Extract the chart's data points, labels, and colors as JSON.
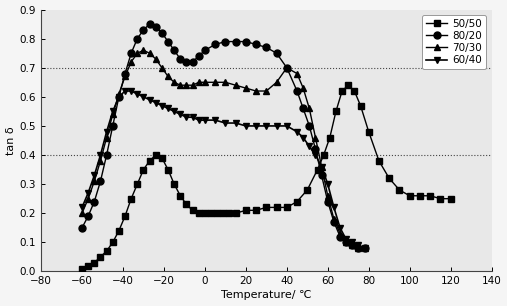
{
  "title": "",
  "xlabel": "Temperature/ ℃",
  "ylabel": "tan δ",
  "xlim": [
    -80,
    140
  ],
  "ylim": [
    0.0,
    0.9
  ],
  "xticks": [
    -80,
    -60,
    -40,
    -20,
    0,
    20,
    40,
    60,
    80,
    100,
    120,
    140
  ],
  "yticks": [
    0.0,
    0.1,
    0.2,
    0.3,
    0.4,
    0.5,
    0.6,
    0.7,
    0.8,
    0.9
  ],
  "hlines": [
    0.7,
    0.4
  ],
  "series": [
    {
      "label": "50/50",
      "marker": "s",
      "markersize": 4,
      "linewidth": 1.0,
      "x": [
        -60,
        -57,
        -54,
        -51,
        -48,
        -45,
        -42,
        -39,
        -36,
        -33,
        -30,
        -27,
        -24,
        -21,
        -18,
        -15,
        -12,
        -9,
        -6,
        -3,
        0,
        3,
        6,
        9,
        12,
        15,
        20,
        25,
        30,
        35,
        40,
        45,
        50,
        55,
        58,
        61,
        64,
        67,
        70,
        73,
        76,
        80,
        85,
        90,
        95,
        100,
        105,
        110,
        115,
        120
      ],
      "y": [
        0.01,
        0.02,
        0.03,
        0.05,
        0.07,
        0.1,
        0.14,
        0.19,
        0.25,
        0.3,
        0.35,
        0.38,
        0.4,
        0.39,
        0.35,
        0.3,
        0.26,
        0.23,
        0.21,
        0.2,
        0.2,
        0.2,
        0.2,
        0.2,
        0.2,
        0.2,
        0.21,
        0.21,
        0.22,
        0.22,
        0.22,
        0.24,
        0.28,
        0.35,
        0.4,
        0.46,
        0.55,
        0.62,
        0.64,
        0.62,
        0.57,
        0.48,
        0.38,
        0.32,
        0.28,
        0.26,
        0.26,
        0.26,
        0.25,
        0.25
      ]
    },
    {
      "label": "80/20",
      "marker": "o",
      "markersize": 5,
      "linewidth": 1.0,
      "x": [
        -60,
        -57,
        -54,
        -51,
        -48,
        -45,
        -42,
        -39,
        -36,
        -33,
        -30,
        -27,
        -24,
        -21,
        -18,
        -15,
        -12,
        -9,
        -6,
        -3,
        0,
        5,
        10,
        15,
        20,
        25,
        30,
        35,
        40,
        45,
        48,
        51,
        54,
        57,
        60,
        63,
        66,
        69,
        72,
        75,
        78
      ],
      "y": [
        0.15,
        0.19,
        0.24,
        0.31,
        0.4,
        0.5,
        0.6,
        0.68,
        0.75,
        0.8,
        0.83,
        0.85,
        0.84,
        0.82,
        0.79,
        0.76,
        0.73,
        0.72,
        0.72,
        0.74,
        0.76,
        0.78,
        0.79,
        0.79,
        0.79,
        0.78,
        0.77,
        0.75,
        0.7,
        0.62,
        0.56,
        0.5,
        0.42,
        0.33,
        0.24,
        0.17,
        0.12,
        0.1,
        0.09,
        0.08,
        0.08
      ]
    },
    {
      "label": "70/30",
      "marker": "^",
      "markersize": 5,
      "linewidth": 1.0,
      "x": [
        -60,
        -57,
        -54,
        -51,
        -48,
        -45,
        -42,
        -39,
        -36,
        -33,
        -30,
        -27,
        -24,
        -21,
        -18,
        -15,
        -12,
        -9,
        -6,
        -3,
        0,
        5,
        10,
        15,
        20,
        25,
        30,
        35,
        40,
        45,
        48,
        51,
        54,
        57,
        60,
        63,
        66,
        69,
        72,
        75,
        78
      ],
      "y": [
        0.2,
        0.25,
        0.31,
        0.38,
        0.46,
        0.54,
        0.61,
        0.67,
        0.72,
        0.75,
        0.76,
        0.75,
        0.73,
        0.7,
        0.67,
        0.65,
        0.64,
        0.64,
        0.64,
        0.65,
        0.65,
        0.65,
        0.65,
        0.64,
        0.63,
        0.62,
        0.62,
        0.65,
        0.7,
        0.68,
        0.63,
        0.56,
        0.46,
        0.36,
        0.26,
        0.18,
        0.13,
        0.1,
        0.09,
        0.08,
        0.08
      ]
    },
    {
      "label": "60/40",
      "marker": "v",
      "markersize": 5,
      "linewidth": 1.2,
      "x": [
        -60,
        -57,
        -54,
        -51,
        -48,
        -45,
        -42,
        -39,
        -36,
        -33,
        -30,
        -27,
        -24,
        -21,
        -18,
        -15,
        -12,
        -9,
        -6,
        -3,
        0,
        5,
        10,
        15,
        20,
        25,
        30,
        35,
        40,
        45,
        48,
        51,
        54,
        57,
        60,
        63,
        66,
        69,
        72,
        75,
        78
      ],
      "y": [
        0.22,
        0.27,
        0.33,
        0.4,
        0.48,
        0.55,
        0.6,
        0.62,
        0.62,
        0.61,
        0.6,
        0.59,
        0.58,
        0.57,
        0.56,
        0.55,
        0.54,
        0.53,
        0.53,
        0.52,
        0.52,
        0.52,
        0.51,
        0.51,
        0.5,
        0.5,
        0.5,
        0.5,
        0.5,
        0.48,
        0.46,
        0.43,
        0.4,
        0.36,
        0.3,
        0.22,
        0.15,
        0.11,
        0.1,
        0.09,
        0.08
      ]
    }
  ],
  "background_color": "#f5f5f5",
  "plot_bg_color": "#e8e8e8"
}
